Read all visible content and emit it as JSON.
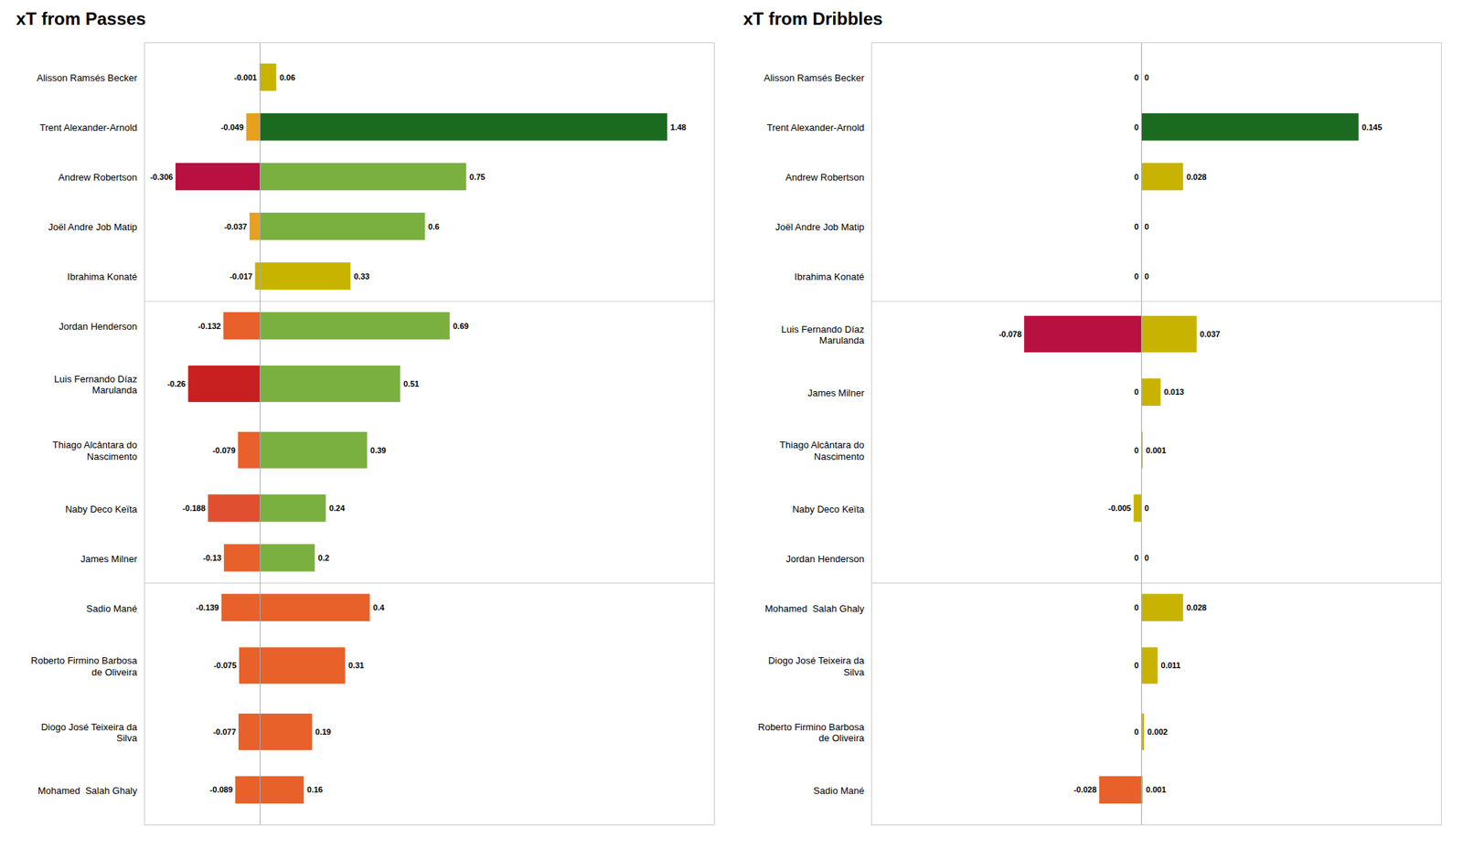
{
  "chart_data": [
    {
      "type": "bar",
      "orientation": "horizontal",
      "title": "xT from Passes",
      "categories": [
        "Alisson Ramsés Becker",
        "Trent Alexander-Arnold",
        "Andrew Robertson",
        "Joël Andre Job Matip",
        "Ibrahima Konaté",
        "Jordan Henderson",
        "Luis Fernando Díaz\nMarulanda",
        "Thiago Alcântara do\nNascimento",
        "Naby Deco Keïta",
        "James Milner",
        "Sadio Mané",
        "Roberto Firmino Barbosa\nde Oliveira",
        "Diogo José Teixeira da\nSilva",
        "Mohamed  Salah Ghaly"
      ],
      "series": [
        {
          "values": [
            -0.001,
            -0.049,
            -0.306,
            -0.037,
            -0.017,
            -0.132,
            -0.26,
            -0.079,
            -0.188,
            -0.13,
            -0.139,
            -0.075,
            -0.077,
            -0.089
          ],
          "colors": [
            "#c8b400",
            "#e8a020",
            "#b81040",
            "#e8a020",
            "#c8b400",
            "#e8602a",
            "#c82020",
            "#e8602a",
            "#e05030",
            "#e8602a",
            "#e8602a",
            "#e8602a",
            "#e8602a",
            "#e8602a"
          ]
        },
        {
          "values": [
            0.06,
            1.48,
            0.75,
            0.6,
            0.33,
            0.69,
            0.51,
            0.39,
            0.24,
            0.2,
            0.4,
            0.31,
            0.19,
            0.16
          ],
          "colors": [
            "#c8b400",
            "#1a6b20",
            "#7ab040",
            "#7ab040",
            "#c8b400",
            "#7ab040",
            "#7ab040",
            "#7ab040",
            "#7ab040",
            "#7ab040",
            "#e8602a",
            "#e8602a",
            "#e8602a",
            "#e8602a"
          ]
        }
      ],
      "groups": [
        0,
        0,
        0,
        0,
        0,
        1,
        1,
        1,
        1,
        1,
        2,
        2,
        2,
        2
      ],
      "xlim": [
        -0.42,
        1.65
      ],
      "tick_labels": "y",
      "data_labels": true,
      "grid": false
    },
    {
      "type": "bar",
      "orientation": "horizontal",
      "title": "xT from Dribbles",
      "categories": [
        "Alisson Ramsés Becker",
        "Trent Alexander-Arnold",
        "Andrew Robertson",
        "Joël Andre Job Matip",
        "Ibrahima Konaté",
        "Luis Fernando Díaz\nMarulanda",
        "James Milner",
        "Thiago Alcântara do\nNascimento",
        "Naby Deco Keïta",
        "Jordan Henderson",
        "Mohamed  Salah Ghaly",
        "Diogo José Teixeira da\nSilva",
        "Roberto Firmino Barbosa\nde Oliveira",
        "Sadio Mané"
      ],
      "series": [
        {
          "values": [
            0,
            0,
            0,
            0,
            0,
            -0.078,
            0,
            0,
            -0.005,
            0,
            0,
            0,
            0,
            -0.028
          ],
          "colors": [
            "#ffffff",
            "#ffffff",
            "#ffffff",
            "#ffffff",
            "#ffffff",
            "#b81040",
            "#ffffff",
            "#ffffff",
            "#c8b400",
            "#ffffff",
            "#ffffff",
            "#ffffff",
            "#ffffff",
            "#e8602a"
          ]
        },
        {
          "values": [
            0,
            0.145,
            0.028,
            0,
            0,
            0.037,
            0.013,
            0.001,
            0,
            0,
            0.028,
            0.011,
            0.002,
            0.001
          ],
          "colors": [
            "#ffffff",
            "#1a6b20",
            "#c8b400",
            "#ffffff",
            "#ffffff",
            "#c8b400",
            "#c8b400",
            "#c8b400",
            "#ffffff",
            "#ffffff",
            "#c8b400",
            "#c8b400",
            "#c8b400",
            "#c8b400"
          ]
        }
      ],
      "groups": [
        0,
        0,
        0,
        0,
        0,
        1,
        1,
        1,
        1,
        1,
        2,
        2,
        2,
        2
      ],
      "xlim": [
        -0.18,
        0.2
      ],
      "tick_labels": "y",
      "data_labels": true,
      "grid": false
    }
  ]
}
